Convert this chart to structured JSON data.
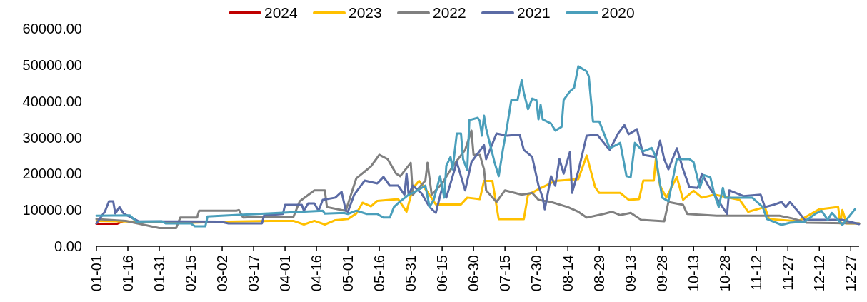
{
  "chart_data": {
    "type": "line",
    "legend": "top",
    "line_style": "solid",
    "grid": false,
    "xlim": [
      "--01-01",
      "--12-31"
    ],
    "xticks": [
      {
        "value": "--01-01",
        "label": "01-01"
      },
      {
        "value": "--01-16",
        "label": "01-16"
      },
      {
        "value": "--01-31",
        "label": "01-31"
      },
      {
        "value": "--02-15",
        "label": "02-15"
      },
      {
        "value": "--03-02",
        "label": "03-02"
      },
      {
        "value": "--03-17",
        "label": "03-17"
      },
      {
        "value": "--04-01",
        "label": "04-01"
      },
      {
        "value": "--04-16",
        "label": "04-16"
      },
      {
        "value": "--05-01",
        "label": "05-01"
      },
      {
        "value": "--05-16",
        "label": "05-16"
      },
      {
        "value": "--05-31",
        "label": "05-31"
      },
      {
        "value": "--06-15",
        "label": "06-15"
      },
      {
        "value": "--06-30",
        "label": "06-30"
      },
      {
        "value": "--07-15",
        "label": "07-15"
      },
      {
        "value": "--07-30",
        "label": "07-30"
      },
      {
        "value": "--08-14",
        "label": "08-14"
      },
      {
        "value": "--08-29",
        "label": "08-29"
      },
      {
        "value": "--09-13",
        "label": "09-13"
      },
      {
        "value": "--09-28",
        "label": "09-28"
      },
      {
        "value": "--10-13",
        "label": "10-13"
      },
      {
        "value": "--10-28",
        "label": "10-28"
      },
      {
        "value": "--11-12",
        "label": "11-12"
      },
      {
        "value": "--11-27",
        "label": "11-27"
      },
      {
        "value": "--12-12",
        "label": "12-12"
      },
      {
        "value": "--12-27",
        "label": "12-27"
      }
    ],
    "ylim": [
      0,
      60000
    ],
    "yticks": [
      {
        "value": 0,
        "label": "0.00"
      },
      {
        "value": 10000,
        "label": "10000.00"
      },
      {
        "value": 20000,
        "label": "20000.00"
      },
      {
        "value": 30000,
        "label": "30000.00"
      },
      {
        "value": 40000,
        "label": "40000.00"
      },
      {
        "value": 50000,
        "label": "50000.00"
      },
      {
        "value": 60000,
        "label": "60000.00"
      }
    ],
    "series": [
      {
        "name": "2024",
        "color": "#c00000",
        "x": [
          "--01-01",
          "--01-11",
          "--01-14"
        ],
        "values": [
          6200,
          6200,
          7000
        ]
      },
      {
        "name": "2023",
        "color": "#ffc000",
        "x": [
          "--01-01",
          "--01-20",
          "--02-15",
          "--03-05",
          "--03-25",
          "--04-05",
          "--04-10",
          "--04-15",
          "--04-20",
          "--04-25",
          "--05-01",
          "--05-05",
          "--05-08",
          "--05-12",
          "--05-15",
          "--05-25",
          "--05-29",
          "--06-01",
          "--06-04",
          "--06-08",
          "--06-12",
          "--06-24",
          "--06-27",
          "--07-03",
          "--07-05",
          "--07-09",
          "--07-12",
          "--07-24",
          "--07-26",
          "--08-01",
          "--08-08",
          "--08-19",
          "--08-23",
          "--08-27",
          "--08-29",
          "--09-08",
          "--09-12",
          "--09-17",
          "--09-19",
          "--09-24",
          "--09-25",
          "--09-27",
          "--09-30",
          "--10-05",
          "--10-08",
          "--10-13",
          "--10-17",
          "--10-23",
          "--11-04",
          "--11-08",
          "--11-16",
          "--11-18",
          "--12-02",
          "--12-12",
          "--12-21",
          "--12-22",
          "--12-23",
          "--12-25",
          "--12-31"
        ],
        "values": [
          7000,
          6800,
          6500,
          6800,
          7000,
          7000,
          6000,
          7000,
          6000,
          7200,
          7500,
          9000,
          12000,
          11000,
          12500,
          13000,
          9500,
          16000,
          18000,
          15000,
          11500,
          11500,
          13400,
          13000,
          18000,
          18000,
          7500,
          7500,
          14200,
          16000,
          18000,
          18500,
          25000,
          16300,
          14700,
          14700,
          12800,
          13000,
          18100,
          18100,
          24000,
          16700,
          13400,
          19100,
          12800,
          15300,
          13400,
          14200,
          12800,
          9500,
          10800,
          7500,
          6900,
          10200,
          10800,
          6300,
          10000,
          6300,
          6300
        ]
      },
      {
        "name": "2022",
        "color": "#808080",
        "x": [
          "--01-01",
          "--01-15",
          "--01-31",
          "--02-08",
          "--02-10",
          "--02-18",
          "--02-19",
          "--03-09",
          "--03-10",
          "--03-12",
          "--03-21",
          "--04-05",
          "--04-08",
          "--04-15",
          "--04-20",
          "--04-21",
          "--04-28",
          "--04-30",
          "--05-05",
          "--05-12",
          "--05-16",
          "--05-20",
          "--05-24",
          "--05-26",
          "--05-31",
          "--06-01",
          "--06-07",
          "--06-08",
          "--06-10",
          "--06-15",
          "--06-20",
          "--06-26",
          "--06-29",
          "--06-30",
          "--07-03",
          "--07-05",
          "--07-06",
          "--07-11",
          "--07-15",
          "--07-23",
          "--07-28",
          "--07-31",
          "--08-06",
          "--08-14",
          "--08-19",
          "--08-23",
          "--08-31",
          "--09-04",
          "--09-08",
          "--09-13",
          "--09-18",
          "--09-29",
          "--10-01",
          "--10-08",
          "--10-10",
          "--10-24",
          "--11-23",
          "--11-29",
          "--12-06",
          "--12-31"
        ],
        "values": [
          7500,
          7000,
          5000,
          5000,
          7900,
          7900,
          9800,
          9800,
          10000,
          7900,
          8100,
          8100,
          12400,
          15400,
          15400,
          10800,
          10000,
          9800,
          18700,
          22000,
          25200,
          24000,
          20000,
          19300,
          23000,
          14200,
          18100,
          23000,
          14200,
          17300,
          22000,
          26600,
          31900,
          25200,
          25200,
          21200,
          15400,
          12200,
          15400,
          14200,
          14700,
          12800,
          12200,
          10800,
          9500,
          7900,
          8900,
          9500,
          8600,
          9200,
          7300,
          6900,
          12200,
          11400,
          8900,
          8400,
          8400,
          7700,
          6500,
          6300
        ]
      },
      {
        "name": "2021",
        "color": "#5b6ba5",
        "x": [
          "--01-01",
          "--01-05",
          "--01-07",
          "--01-09",
          "--01-10",
          "--01-12",
          "--01-14",
          "--01-19",
          "--01-21",
          "--03-01",
          "--03-05",
          "--03-21",
          "--03-22",
          "--03-31",
          "--04-01",
          "--04-09",
          "--04-10",
          "--04-12",
          "--04-15",
          "--04-17",
          "--04-19",
          "--04-25",
          "--04-28",
          "--04-30",
          "--05-01",
          "--05-04",
          "--05-09",
          "--05-15",
          "--05-18",
          "--05-21",
          "--05-25",
          "--05-28",
          "--05-29",
          "--05-30",
          "--06-01",
          "--06-05",
          "--06-09",
          "--06-12",
          "--06-15",
          "--06-17",
          "--06-22",
          "--06-26",
          "--06-29",
          "--07-05",
          "--07-06",
          "--07-11",
          "--07-16",
          "--07-22",
          "--07-24",
          "--07-28",
          "--07-31",
          "--08-02",
          "--08-03",
          "--08-06",
          "--08-08",
          "--08-10",
          "--08-12",
          "--08-15",
          "--08-16",
          "--08-19",
          "--08-23",
          "--08-28",
          "--09-01",
          "--09-03",
          "--09-07",
          "--09-10",
          "--09-12",
          "--09-15",
          "--09-16",
          "--09-19",
          "--09-25",
          "--09-27",
          "--09-29",
          "--10-01",
          "--10-05",
          "--10-08",
          "--10-11",
          "--10-15",
          "--10-17",
          "--10-20",
          "--10-29",
          "--10-30",
          "--11-06",
          "--11-14",
          "--11-16",
          "--11-20",
          "--11-24",
          "--11-26",
          "--11-28",
          "--12-02",
          "--12-05",
          "--12-23",
          "--12-31"
        ],
        "values": [
          6300,
          9500,
          12400,
          12400,
          9000,
          10800,
          9000,
          7500,
          6900,
          6800,
          6300,
          6300,
          8500,
          8900,
          11400,
          11400,
          9800,
          11800,
          11800,
          9800,
          12800,
          13400,
          15000,
          9800,
          9500,
          14200,
          18100,
          17300,
          19100,
          16700,
          16700,
          14200,
          20000,
          14200,
          16700,
          14700,
          10800,
          9200,
          16100,
          13400,
          23200,
          15400,
          23200,
          27900,
          24000,
          31100,
          30500,
          30800,
          26600,
          24600,
          16700,
          13400,
          10200,
          19300,
          16700,
          24000,
          20000,
          26000,
          14700,
          20700,
          30500,
          30800,
          27900,
          26600,
          31100,
          33400,
          30900,
          31900,
          32300,
          25200,
          24600,
          29100,
          24000,
          21200,
          27000,
          21200,
          16300,
          16100,
          20000,
          16700,
          8900,
          15400,
          13800,
          14200,
          10800,
          11400,
          12200,
          10800,
          12200,
          9500,
          7300,
          7300,
          6100
        ]
      },
      {
        "name": "2020",
        "color": "#4a9fbb",
        "x": [
          "--01-01",
          "--01-17",
          "--01-20",
          "--02-01",
          "--02-03",
          "--02-15",
          "--02-17",
          "--02-22",
          "--02-23",
          "--03-05",
          "--04-19",
          "--04-20",
          "--04-29",
          "--05-01",
          "--05-05",
          "--05-10",
          "--05-15",
          "--05-18",
          "--05-21",
          "--05-23",
          "--05-26",
          "--05-30",
          "--06-02",
          "--06-07",
          "--06-09",
          "--06-11",
          "--06-14",
          "--06-16",
          "--06-17",
          "--06-19",
          "--06-20",
          "--06-22",
          "--06-24",
          "--06-25",
          "--06-27",
          "--06-28",
          "--07-02",
          "--07-03",
          "--07-04",
          "--07-05",
          "--07-06",
          "--07-10",
          "--07-12",
          "--07-14",
          "--07-16",
          "--07-18",
          "--07-21",
          "--07-23",
          "--07-24",
          "--07-26",
          "--07-28",
          "--07-30",
          "--07-31",
          "--08-01",
          "--08-02",
          "--08-06",
          "--08-08",
          "--08-11",
          "--08-12",
          "--08-15",
          "--08-17",
          "--08-19",
          "--08-23",
          "--08-24",
          "--08-26",
          "--08-29",
          "--09-02",
          "--09-03",
          "--09-08",
          "--09-11",
          "--09-13",
          "--09-15",
          "--09-19",
          "--09-23",
          "--09-25",
          "--09-28",
          "--10-01",
          "--10-05",
          "--10-11",
          "--10-13",
          "--10-16",
          "--10-18",
          "--10-21",
          "--10-23",
          "--10-25",
          "--10-27",
          "--10-28",
          "--11-10",
          "--11-15",
          "--11-17",
          "--11-24",
          "--11-28",
          "--12-05",
          "--12-10",
          "--12-13",
          "--12-16",
          "--12-18",
          "--12-23",
          "--12-29"
        ],
        "values": [
          8400,
          8500,
          6800,
          6900,
          6300,
          6300,
          5500,
          5500,
          8200,
          8500,
          9800,
          9000,
          9200,
          8900,
          9800,
          8900,
          8900,
          7900,
          7900,
          10800,
          12400,
          14200,
          15000,
          16700,
          10800,
          12800,
          19300,
          13400,
          22200,
          24600,
          21200,
          31100,
          31100,
          24000,
          21000,
          34800,
          35400,
          34500,
          30500,
          36000,
          32500,
          23200,
          19300,
          26600,
          33000,
          40300,
          40300,
          45800,
          42300,
          37800,
          40700,
          40300,
          35000,
          39000,
          35000,
          33800,
          31900,
          32900,
          40300,
          42700,
          43700,
          49600,
          48200,
          46800,
          34400,
          34400,
          28500,
          27000,
          28500,
          19300,
          19100,
          28500,
          26200,
          27100,
          24600,
          13400,
          12400,
          24000,
          24000,
          23200,
          16100,
          19600,
          19000,
          14200,
          10800,
          16100,
          13400,
          13400,
          10800,
          7500,
          5900,
          6500,
          6800,
          8900,
          9800,
          7300,
          9200,
          5900,
          10200
        ]
      }
    ]
  }
}
